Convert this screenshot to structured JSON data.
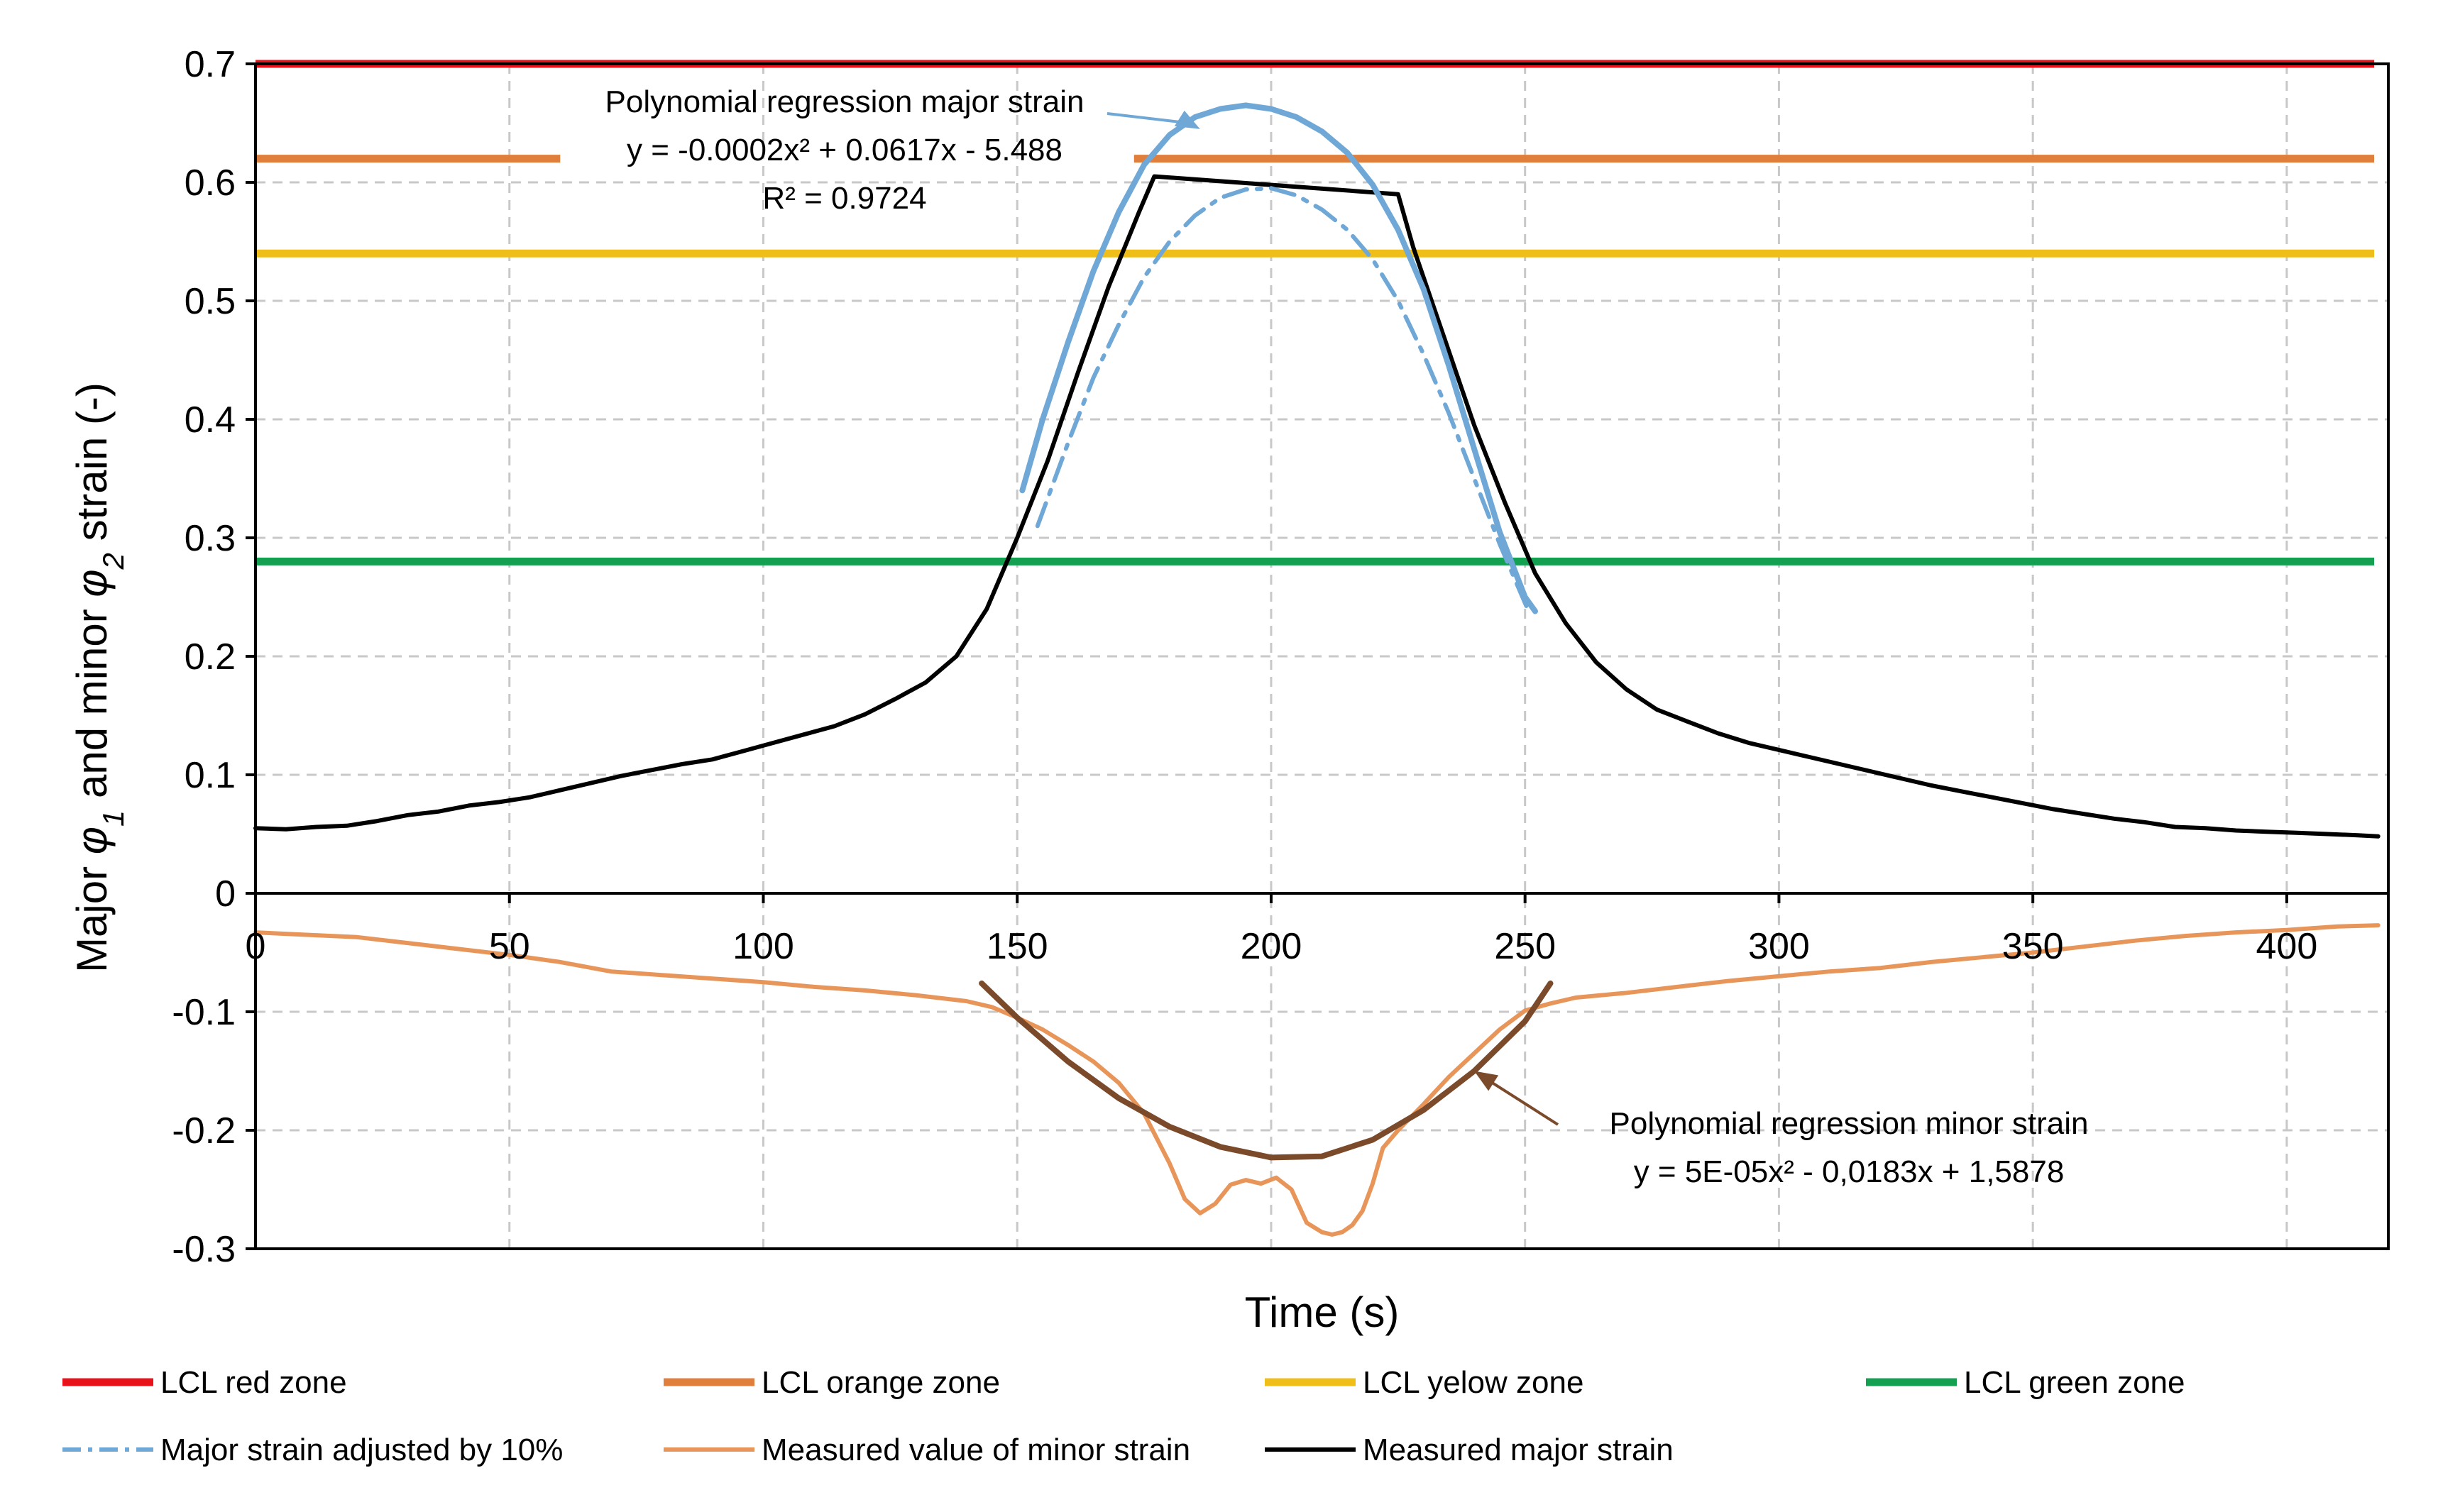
{
  "chart_data": {
    "type": "line",
    "title": "",
    "xlabel": "Time (s)",
    "ylabel_parts": [
      "Major ",
      "φ",
      "1",
      " and minor ",
      "φ",
      "2",
      " strain (-)"
    ],
    "xlim": [
      0,
      420
    ],
    "ylim": [
      -0.3,
      0.7
    ],
    "x_ticks": [
      0,
      50,
      100,
      150,
      200,
      250,
      300,
      350,
      400
    ],
    "x_tick_labels": [
      "0",
      "50",
      "100",
      "150",
      "200",
      "250",
      "300",
      "350",
      "400"
    ],
    "y_ticks": [
      0.7,
      0.6,
      0.5,
      0.4,
      0.3,
      0.2,
      0.1,
      0,
      -0.1,
      -0.2,
      -0.3
    ],
    "y_tick_labels": [
      "0.7",
      "0.6",
      "0.5",
      "0.4",
      "0.3",
      "0.2",
      "0.1",
      "0",
      "-0.1",
      "-0.2",
      "-0.3"
    ],
    "grid": true,
    "limits": [
      {
        "name": "LCL red zone",
        "value": 0.7,
        "color": "#e8121a"
      },
      {
        "name": "LCL orange zone",
        "value": 0.62,
        "color": "#e07e3c",
        "gap": [
          60,
          173
        ]
      },
      {
        "name": "LCL yelow zone",
        "value": 0.54,
        "color": "#f0be18"
      },
      {
        "name": "LCL green zone",
        "value": 0.28,
        "color": "#13a050"
      }
    ],
    "series": [
      {
        "name": "Measured major strain",
        "color": "#000000",
        "style": "solid",
        "x": [
          0,
          6,
          12,
          18,
          24,
          30,
          36,
          42,
          48,
          54,
          60,
          66,
          72,
          78,
          84,
          90,
          96,
          102,
          108,
          114,
          120,
          126,
          132,
          138,
          144,
          150,
          156,
          162,
          168,
          174,
          177,
          225,
          228,
          234,
          240,
          246,
          252,
          258,
          264,
          270,
          276,
          282,
          288,
          294,
          300,
          306,
          312,
          318,
          324,
          330,
          336,
          342,
          348,
          354,
          360,
          366,
          372,
          378,
          384,
          390,
          396,
          402,
          408,
          414,
          418
        ],
        "values": [
          0.055,
          0.054,
          0.056,
          0.057,
          0.061,
          0.066,
          0.069,
          0.074,
          0.077,
          0.081,
          0.087,
          0.093,
          0.099,
          0.104,
          0.109,
          0.113,
          0.12,
          0.127,
          0.134,
          0.141,
          0.151,
          0.164,
          0.178,
          0.2,
          0.24,
          0.3,
          0.365,
          0.44,
          0.512,
          0.575,
          0.605,
          0.59,
          0.545,
          0.47,
          0.395,
          0.33,
          0.27,
          0.228,
          0.195,
          0.172,
          0.155,
          0.145,
          0.135,
          0.127,
          0.121,
          0.115,
          0.109,
          0.103,
          0.097,
          0.091,
          0.086,
          0.081,
          0.076,
          0.071,
          0.067,
          0.063,
          0.06,
          0.056,
          0.055,
          0.053,
          0.052,
          0.051,
          0.05,
          0.049,
          0.048
        ]
      },
      {
        "name": "Polynomial regression major strain",
        "color": "#6fa8d6",
        "style": "solid",
        "x": [
          151,
          155,
          160,
          165,
          170,
          175,
          180,
          185,
          190,
          195,
          200,
          205,
          210,
          215,
          220,
          225,
          230,
          235,
          240,
          245,
          250,
          252
        ],
        "values": [
          0.34,
          0.4,
          0.465,
          0.525,
          0.575,
          0.615,
          0.64,
          0.655,
          0.662,
          0.665,
          0.662,
          0.655,
          0.643,
          0.625,
          0.598,
          0.56,
          0.51,
          0.445,
          0.375,
          0.305,
          0.25,
          0.238
        ]
      },
      {
        "name": "Major strain adjusted by 10%",
        "color": "#6fa8d6",
        "style": "dashdot",
        "x": [
          154,
          160,
          165,
          170,
          175,
          180,
          185,
          190,
          195,
          200,
          205,
          210,
          215,
          220,
          225,
          230,
          235,
          240,
          245,
          250,
          251
        ],
        "values": [
          0.31,
          0.38,
          0.435,
          0.48,
          0.52,
          0.55,
          0.572,
          0.587,
          0.594,
          0.595,
          0.589,
          0.577,
          0.56,
          0.535,
          0.5,
          0.455,
          0.405,
          0.35,
          0.295,
          0.245,
          0.235
        ]
      },
      {
        "name": "Measured value of minor strain",
        "color": "#e8955a",
        "style": "solid",
        "x": [
          0,
          10,
          20,
          30,
          40,
          50,
          60,
          70,
          80,
          90,
          100,
          110,
          120,
          130,
          140,
          145,
          150,
          155,
          160,
          165,
          170,
          175,
          180,
          183,
          186,
          189,
          192,
          195,
          198,
          201,
          204,
          207,
          210,
          212,
          214,
          216,
          218,
          220,
          222,
          225,
          230,
          235,
          240,
          245,
          250,
          255,
          260,
          270,
          280,
          290,
          300,
          310,
          320,
          330,
          340,
          350,
          360,
          370,
          380,
          390,
          400,
          410,
          418
        ],
        "values": [
          -0.033,
          -0.035,
          -0.037,
          -0.042,
          -0.047,
          -0.052,
          -0.058,
          -0.066,
          -0.069,
          -0.072,
          -0.075,
          -0.079,
          -0.082,
          -0.086,
          -0.091,
          -0.096,
          -0.105,
          -0.115,
          -0.128,
          -0.142,
          -0.16,
          -0.186,
          -0.228,
          -0.258,
          -0.27,
          -0.262,
          -0.246,
          -0.242,
          -0.245,
          -0.24,
          -0.25,
          -0.278,
          -0.286,
          -0.288,
          -0.286,
          -0.28,
          -0.268,
          -0.245,
          -0.215,
          -0.2,
          -0.178,
          -0.155,
          -0.135,
          -0.115,
          -0.099,
          -0.093,
          -0.088,
          -0.084,
          -0.079,
          -0.074,
          -0.07,
          -0.066,
          -0.063,
          -0.058,
          -0.054,
          -0.05,
          -0.045,
          -0.04,
          -0.036,
          -0.033,
          -0.031,
          -0.028,
          -0.027
        ]
      },
      {
        "name": "Polynomial regression minor strain",
        "color": "#7b4a2a",
        "style": "solid",
        "x": [
          143,
          150,
          160,
          170,
          180,
          190,
          200,
          210,
          220,
          230,
          240,
          250,
          255
        ],
        "values": [
          -0.076,
          -0.105,
          -0.142,
          -0.173,
          -0.197,
          -0.214,
          -0.223,
          -0.222,
          -0.208,
          -0.183,
          -0.15,
          -0.108,
          -0.076
        ]
      }
    ],
    "annotations": [
      {
        "name": "major-regression-annotation",
        "lines": [
          "Polynomial regression major strain",
          "y = -0.0002x² + 0.0617x - 5.488",
          "R² = 0.9724"
        ],
        "target_x": 186,
        "target_y": 0.645,
        "color": "#6fa8d6"
      },
      {
        "name": "minor-regression-annotation",
        "lines": [
          "Polynomial regression minor strain",
          "y = 5E-05x² - 0,0183x + 1,5878"
        ],
        "target_x": 240,
        "target_y": -0.15,
        "color": "#7b4a2a"
      }
    ],
    "legend": {
      "placement": "bottom",
      "entries": [
        {
          "label": "LCL red zone",
          "color": "#e8121a",
          "style": "thick"
        },
        {
          "label": "LCL orange zone",
          "color": "#e07e3c",
          "style": "thick"
        },
        {
          "label": "LCL yelow zone",
          "color": "#f0be18",
          "style": "thick"
        },
        {
          "label": "LCL green zone",
          "color": "#13a050",
          "style": "thick"
        },
        {
          "label": "Major strain adjusted by 10%",
          "color": "#6fa8d6",
          "style": "dashdot"
        },
        {
          "label": "Measured value of minor strain",
          "color": "#e8955a",
          "style": "solid"
        },
        {
          "label": "Measured major strain",
          "color": "#000000",
          "style": "solid"
        }
      ]
    }
  }
}
